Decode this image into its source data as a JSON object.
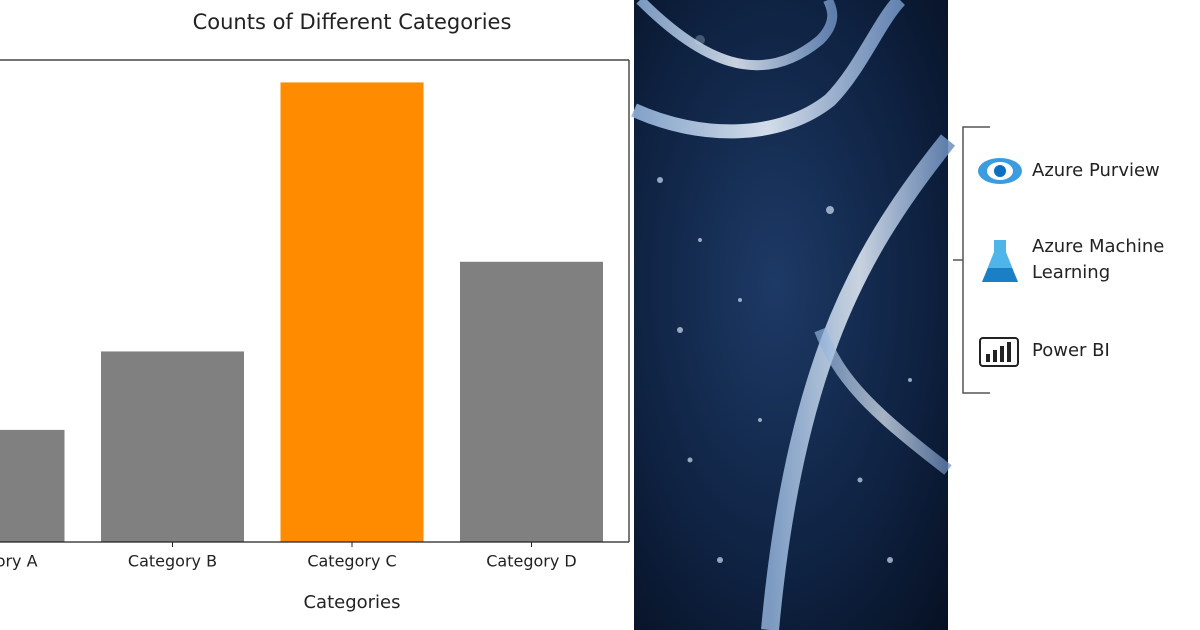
{
  "chart_data": {
    "type": "bar",
    "title": "Counts of Different Categories",
    "x_label": "Categories",
    "categories": [
      "Category A",
      "Category B",
      "Category C",
      "Category D"
    ],
    "values": [
      10,
      17,
      41,
      25
    ],
    "colors": [
      "#808080",
      "#808080",
      "#ff8c00",
      "#808080"
    ],
    "ylim": [
      0,
      43
    ]
  },
  "services": [
    {
      "lines": [
        "Azure Purview"
      ]
    },
    {
      "lines": [
        "Azure Machine",
        "Learning"
      ]
    },
    {
      "lines": [
        "Power BI"
      ]
    }
  ]
}
